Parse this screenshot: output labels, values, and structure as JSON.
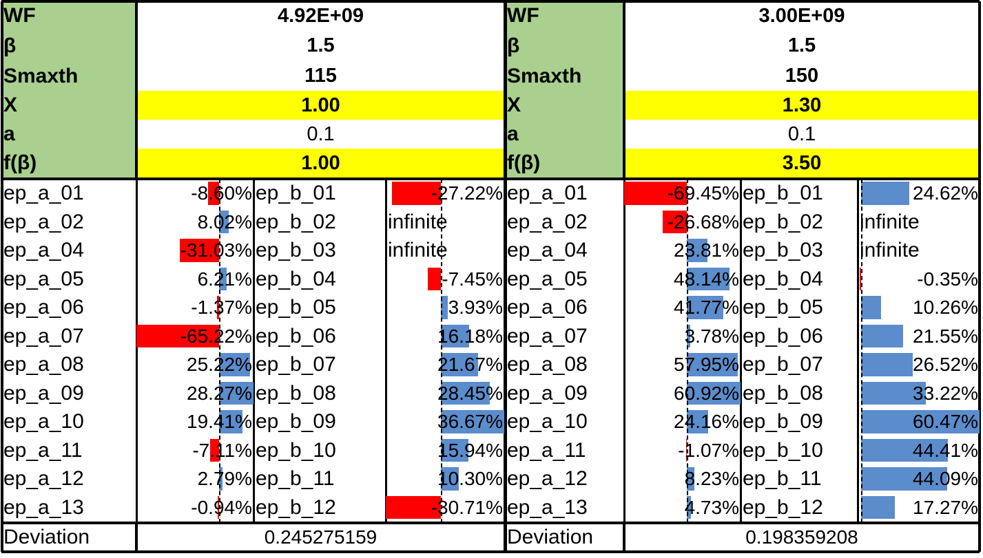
{
  "panels": [
    {
      "header": [
        {
          "label": "WF",
          "value": "4.92E+09",
          "highlight": false,
          "bold": true
        },
        {
          "label": "β",
          "value": "1.5",
          "highlight": false,
          "bold": true
        },
        {
          "label": "Smaxth",
          "value": "115",
          "highlight": false,
          "bold": true
        },
        {
          "label": "X",
          "value": "1.00",
          "highlight": true,
          "bold": true
        },
        {
          "label": "a",
          "value": "0.1",
          "highlight": false,
          "bold": false
        },
        {
          "label": "f(β)",
          "value": "1.00",
          "highlight": true,
          "bold": true
        }
      ],
      "a_rows": [
        {
          "name": "ep_a_01",
          "text": "-8.60%",
          "pct": -8.6
        },
        {
          "name": "ep_a_02",
          "text": "8.02%",
          "pct": 8.02
        },
        {
          "name": "ep_a_04",
          "text": "-31.03%",
          "pct": -31.03
        },
        {
          "name": "ep_a_05",
          "text": "6.21%",
          "pct": 6.21
        },
        {
          "name": "ep_a_06",
          "text": "-1.37%",
          "pct": -1.37
        },
        {
          "name": "ep_a_07",
          "text": "-65.22%",
          "pct": -65.22
        },
        {
          "name": "ep_a_08",
          "text": "25.22%",
          "pct": 25.22
        },
        {
          "name": "ep_a_09",
          "text": "28.27%",
          "pct": 28.27
        },
        {
          "name": "ep_a_10",
          "text": "19.41%",
          "pct": 19.41
        },
        {
          "name": "ep_a_11",
          "text": "-7.11%",
          "pct": -7.11
        },
        {
          "name": "ep_a_12",
          "text": "2.79%",
          "pct": 2.79
        },
        {
          "name": "ep_a_13",
          "text": "-0.94%",
          "pct": -0.94
        }
      ],
      "b_rows": [
        {
          "name": "ep_b_01",
          "text": "-27.22%",
          "pct": -27.22
        },
        {
          "name": "ep_b_02",
          "text": "infinite",
          "pct": null
        },
        {
          "name": "ep_b_03",
          "text": "infinite",
          "pct": null
        },
        {
          "name": "ep_b_04",
          "text": "-7.45%",
          "pct": -7.45
        },
        {
          "name": "ep_b_05",
          "text": "3.93%",
          "pct": 3.93
        },
        {
          "name": "ep_b_06",
          "text": "16.18%",
          "pct": 16.18
        },
        {
          "name": "ep_b_07",
          "text": "21.67%",
          "pct": 21.67
        },
        {
          "name": "ep_b_08",
          "text": "28.45%",
          "pct": 28.45
        },
        {
          "name": "ep_b_09",
          "text": "36.67%",
          "pct": 36.67
        },
        {
          "name": "ep_b_10",
          "text": "15.94%",
          "pct": 15.94
        },
        {
          "name": "ep_b_11",
          "text": "10.30%",
          "pct": 10.3
        },
        {
          "name": "ep_b_12",
          "text": "-30.71%",
          "pct": -30.71
        }
      ],
      "deviation_label": "Deviation",
      "deviation_value": "0.245275159"
    },
    {
      "header": [
        {
          "label": "WF",
          "value": "3.00E+09",
          "highlight": false,
          "bold": true
        },
        {
          "label": "β",
          "value": "1.5",
          "highlight": false,
          "bold": true
        },
        {
          "label": "Smaxth",
          "value": "150",
          "highlight": false,
          "bold": true
        },
        {
          "label": "X",
          "value": "1.30",
          "highlight": true,
          "bold": true
        },
        {
          "label": "a",
          "value": "0.1",
          "highlight": false,
          "bold": false
        },
        {
          "label": "f(β)",
          "value": "3.50",
          "highlight": true,
          "bold": true
        }
      ],
      "a_rows": [
        {
          "name": "ep_a_01",
          "text": "-69.45%",
          "pct": -69.45
        },
        {
          "name": "ep_a_02",
          "text": "-26.68%",
          "pct": -26.68
        },
        {
          "name": "ep_a_04",
          "text": "23.81%",
          "pct": 23.81
        },
        {
          "name": "ep_a_05",
          "text": "48.14%",
          "pct": 48.14
        },
        {
          "name": "ep_a_06",
          "text": "41.77%",
          "pct": 41.77
        },
        {
          "name": "ep_a_07",
          "text": "3.78%",
          "pct": 3.78
        },
        {
          "name": "ep_a_08",
          "text": "57.95%",
          "pct": 57.95
        },
        {
          "name": "ep_a_09",
          "text": "60.92%",
          "pct": 60.92
        },
        {
          "name": "ep_a_10",
          "text": "24.16%",
          "pct": 24.16
        },
        {
          "name": "ep_a_11",
          "text": "-1.07%",
          "pct": -1.07
        },
        {
          "name": "ep_a_12",
          "text": "8.23%",
          "pct": 8.23
        },
        {
          "name": "ep_a_13",
          "text": "4.73%",
          "pct": 4.73
        }
      ],
      "b_rows": [
        {
          "name": "ep_b_01",
          "text": "24.62%",
          "pct": 24.62
        },
        {
          "name": "ep_b_02",
          "text": "infinite",
          "pct": null
        },
        {
          "name": "ep_b_03",
          "text": "infinite",
          "pct": null
        },
        {
          "name": "ep_b_04",
          "text": "-0.35%",
          "pct": -0.35
        },
        {
          "name": "ep_b_05",
          "text": "10.26%",
          "pct": 10.26
        },
        {
          "name": "ep_b_06",
          "text": "21.55%",
          "pct": 21.55
        },
        {
          "name": "ep_b_07",
          "text": "26.52%",
          "pct": 26.52
        },
        {
          "name": "ep_b_08",
          "text": "33.22%",
          "pct": 33.22
        },
        {
          "name": "ep_b_09",
          "text": "60.47%",
          "pct": 60.47
        },
        {
          "name": "ep_b_10",
          "text": "44.41%",
          "pct": 44.41
        },
        {
          "name": "ep_b_11",
          "text": "44.09%",
          "pct": 44.09
        },
        {
          "name": "ep_b_12",
          "text": "17.27%",
          "pct": 17.27
        }
      ],
      "deviation_label": "Deviation",
      "deviation_value": "0.198359208"
    }
  ],
  "colors": {
    "label_fill": "#a9d08e",
    "highlight_fill": "#ffff00",
    "negative_bar": "#ff0000",
    "positive_bar": "#5b8ccc"
  }
}
